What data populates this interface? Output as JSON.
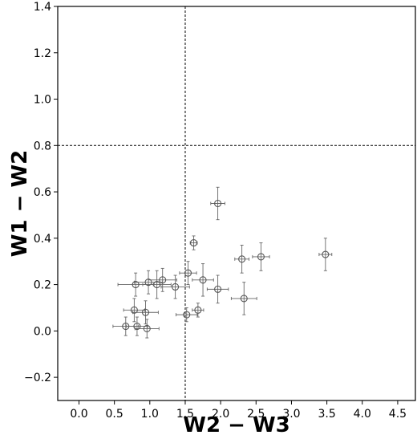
{
  "chart_data": {
    "type": "scatter",
    "title": "",
    "xlabel": "W2 − W3",
    "ylabel": "W1 − W2",
    "xlim": [
      -0.3,
      4.75
    ],
    "ylim": [
      -0.3,
      1.4
    ],
    "xticks": [
      0.0,
      0.5,
      1.0,
      1.5,
      2.0,
      2.5,
      3.0,
      3.5,
      4.0,
      4.5
    ],
    "xtick_labels": [
      "0.0",
      "0.5",
      "1.0",
      "1.5",
      "2.0",
      "2.5",
      "3.0",
      "3.5",
      "4.0",
      "4.5"
    ],
    "yticks": [
      -0.2,
      0.0,
      0.2,
      0.4,
      0.6,
      0.8,
      1.0,
      1.2,
      1.4
    ],
    "ytick_labels": [
      "−0.2",
      "0.0",
      "0.2",
      "0.4",
      "0.6",
      "0.8",
      "1.0",
      "1.2",
      "1.4"
    ],
    "grid": false,
    "marker": "open-circle",
    "reference_lines": [
      {
        "orientation": "vertical",
        "value": 1.5,
        "style": "dashed"
      },
      {
        "orientation": "horizontal",
        "value": 0.8,
        "style": "dashed"
      }
    ],
    "points": [
      {
        "x": 1.96,
        "y": 0.55,
        "xerr": 0.1,
        "yerr": 0.07
      },
      {
        "x": 1.62,
        "y": 0.38,
        "xerr": 0.05,
        "yerr": 0.03
      },
      {
        "x": 3.48,
        "y": 0.33,
        "xerr": 0.09,
        "yerr": 0.07
      },
      {
        "x": 2.57,
        "y": 0.32,
        "xerr": 0.12,
        "yerr": 0.06
      },
      {
        "x": 2.3,
        "y": 0.31,
        "xerr": 0.1,
        "yerr": 0.06
      },
      {
        "x": 1.54,
        "y": 0.25,
        "xerr": 0.12,
        "yerr": 0.05
      },
      {
        "x": 1.75,
        "y": 0.22,
        "xerr": 0.15,
        "yerr": 0.07
      },
      {
        "x": 1.18,
        "y": 0.22,
        "xerr": 0.2,
        "yerr": 0.05
      },
      {
        "x": 0.98,
        "y": 0.21,
        "xerr": 0.2,
        "yerr": 0.05
      },
      {
        "x": 1.1,
        "y": 0.2,
        "xerr": 0.2,
        "yerr": 0.06
      },
      {
        "x": 0.8,
        "y": 0.2,
        "xerr": 0.25,
        "yerr": 0.05
      },
      {
        "x": 1.36,
        "y": 0.19,
        "xerr": 0.2,
        "yerr": 0.05
      },
      {
        "x": 1.96,
        "y": 0.18,
        "xerr": 0.15,
        "yerr": 0.06
      },
      {
        "x": 2.33,
        "y": 0.14,
        "xerr": 0.18,
        "yerr": 0.07
      },
      {
        "x": 0.78,
        "y": 0.09,
        "xerr": 0.15,
        "yerr": 0.05
      },
      {
        "x": 1.68,
        "y": 0.09,
        "xerr": 0.08,
        "yerr": 0.03
      },
      {
        "x": 0.94,
        "y": 0.08,
        "xerr": 0.18,
        "yerr": 0.05
      },
      {
        "x": 1.52,
        "y": 0.07,
        "xerr": 0.15,
        "yerr": 0.03
      },
      {
        "x": 0.66,
        "y": 0.02,
        "xerr": 0.18,
        "yerr": 0.04
      },
      {
        "x": 0.82,
        "y": 0.02,
        "xerr": 0.15,
        "yerr": 0.04
      },
      {
        "x": 0.96,
        "y": 0.01,
        "xerr": 0.17,
        "yerr": 0.04
      }
    ],
    "colors": {
      "marker": "#555555",
      "errorbar": "#666666",
      "axis": "#000000",
      "reference_line": "#000000"
    }
  }
}
